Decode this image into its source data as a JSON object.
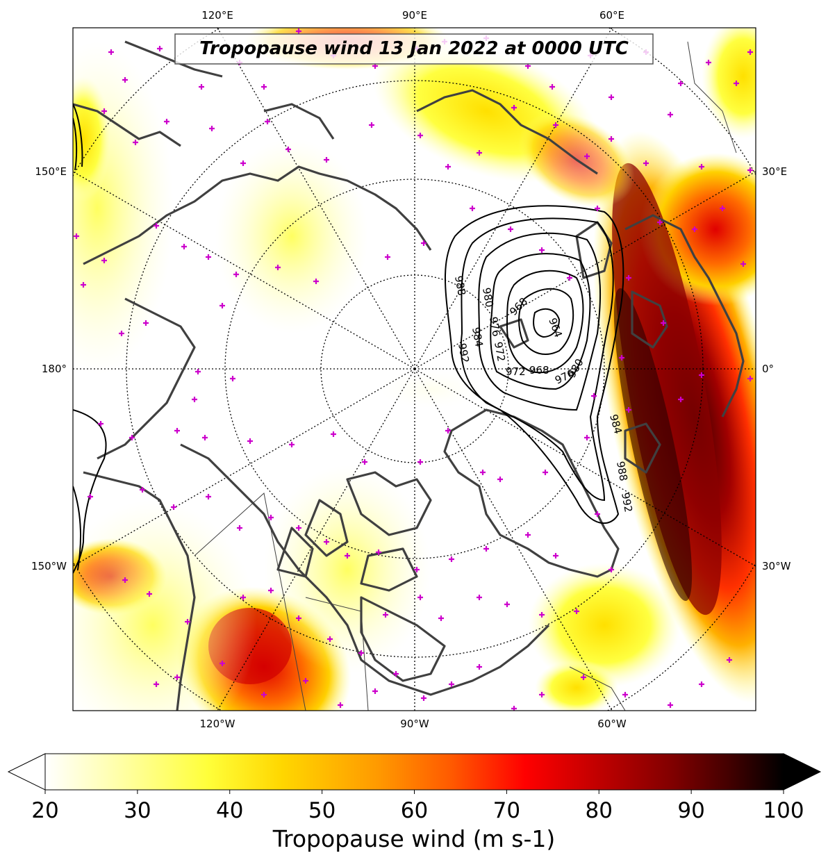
{
  "title": "Tropopause wind 13 Jan 2022 at 0000 UTC",
  "map": {
    "projection": "north-polar-stereographic",
    "top_longitude_labels": [
      "120°E",
      "90°E",
      "60°E"
    ],
    "bottom_longitude_labels": [
      "120°W",
      "90°W",
      "60°W"
    ],
    "left_longitude_labels": [
      "150°E",
      "180°",
      "150°W"
    ],
    "right_longitude_labels": [
      "30°E",
      "0°",
      "30°W"
    ],
    "parallels": "dotted black",
    "coastline_color": "#404040"
  },
  "pressure_contours": {
    "units": "hPa",
    "color": "#000000",
    "labels": [
      "988",
      "980",
      "976",
      "968",
      "964",
      "984",
      "972",
      "972",
      "968",
      "976",
      "980",
      "992",
      "984",
      "988",
      "992"
    ]
  },
  "wind_colorbar": {
    "label": "Tropopause wind (m s-1)",
    "min": 20,
    "max": 100,
    "ticks": [
      "20",
      "30",
      "40",
      "50",
      "60",
      "70",
      "80",
      "90",
      "100"
    ],
    "extend": "both",
    "colors": [
      "#ffffff",
      "#ffffa8",
      "#ffff3a",
      "#ffd700",
      "#ff9a00",
      "#ff5a00",
      "#ff0000",
      "#c00000",
      "#800000",
      "#400000",
      "#000000"
    ]
  },
  "station_marker_color": "#cc00cc"
}
